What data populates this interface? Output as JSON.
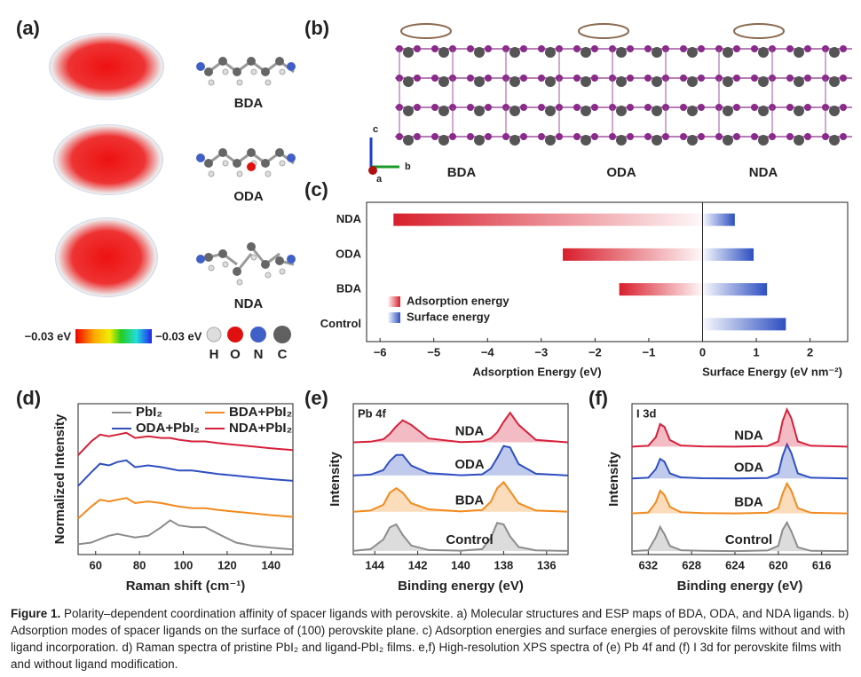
{
  "panels": {
    "a": {
      "label": "(a)",
      "molecules": [
        "BDA",
        "ODA",
        "NDA"
      ],
      "colorbar": [
        "−0.03 eV",
        "−0.03 eV"
      ],
      "atoms": [
        "H",
        "O",
        "N",
        "C"
      ]
    },
    "b": {
      "label": "(b)",
      "molecules": [
        "BDA",
        "ODA",
        "NDA"
      ],
      "axes": [
        "c",
        "b",
        "a"
      ]
    }
  },
  "chart_data": [
    {
      "type": "bar",
      "label": "(c)",
      "orientation": "horizontal",
      "categories": [
        "NDA",
        "ODA",
        "BDA",
        "Control"
      ],
      "series": [
        {
          "name": "Adsorption energy",
          "color": "#d81e2c",
          "values": [
            -5.75,
            -2.6,
            -1.55,
            null
          ]
        },
        {
          "name": "Surface energy",
          "color": "#2d4fc0",
          "values": [
            0.6,
            0.95,
            1.2,
            1.55
          ]
        }
      ],
      "xlim": [
        -6.25,
        2.7
      ],
      "xticks": [
        {
          "value": -6,
          "label": "−6"
        },
        {
          "value": -5,
          "label": "−5"
        },
        {
          "value": -4,
          "label": "−4"
        },
        {
          "value": -3,
          "label": "−3"
        },
        {
          "value": -2,
          "label": "−2"
        },
        {
          "value": -1,
          "label": "−1"
        },
        0,
        1,
        2
      ],
      "xlabel": [
        "Adsorption Energy (eV)",
        "Surface Energy (eV nm⁻²)"
      ]
    },
    {
      "type": "line",
      "label": "(d)",
      "xlabel": "Raman shift (cm⁻¹)",
      "ylabel": "Normalized Intensity",
      "x": [
        52,
        58,
        62,
        66,
        70,
        74,
        78,
        84,
        90,
        94,
        98,
        104,
        110,
        116,
        124,
        132,
        140,
        150
      ],
      "series": [
        {
          "name": "PbI₂",
          "color": "#8c8c8c",
          "values": [
            0.3,
            0.35,
            0.45,
            0.55,
            0.6,
            0.55,
            0.5,
            0.55,
            0.8,
            1.0,
            0.85,
            0.8,
            0.8,
            0.6,
            0.35,
            0.25,
            0.2,
            0.15
          ]
        },
        {
          "name": "BDA+PbI₂",
          "color": "#f28a1e",
          "values": [
            1.05,
            1.4,
            1.6,
            1.55,
            1.6,
            1.65,
            1.5,
            1.55,
            1.5,
            1.45,
            1.4,
            1.35,
            1.35,
            1.3,
            1.25,
            1.2,
            1.15,
            1.1
          ]
        },
        {
          "name": "ODA+PbI₂",
          "color": "#2f4fbf",
          "values": [
            2.0,
            2.4,
            2.65,
            2.6,
            2.7,
            2.75,
            2.55,
            2.6,
            2.55,
            2.5,
            2.45,
            2.45,
            2.4,
            2.35,
            2.3,
            2.25,
            2.2,
            2.15
          ]
        },
        {
          "name": "NDA+PbI₂",
          "color": "#d6203a",
          "values": [
            2.9,
            3.3,
            3.5,
            3.45,
            3.5,
            3.55,
            3.4,
            3.45,
            3.4,
            3.4,
            3.35,
            3.3,
            3.3,
            3.25,
            3.2,
            3.15,
            3.1,
            3.05
          ]
        }
      ],
      "xlim": [
        52,
        150
      ],
      "xticks": [
        60,
        80,
        100,
        120,
        140
      ],
      "ylim": [
        0,
        4.4
      ]
    },
    {
      "type": "area",
      "label": "(e)",
      "title": "Pb 4f",
      "xlabel": "Binding energy (eV)",
      "ylabel": "Intensity",
      "x": [
        145,
        144.2,
        143.6,
        143.3,
        143.0,
        142.7,
        142.3,
        141.5,
        140,
        139,
        138.6,
        138.3,
        138.0,
        137.7,
        137.3,
        136.5,
        135
      ],
      "series": [
        {
          "name": "Control",
          "color": "#8c8c8c",
          "values": [
            0.02,
            0.08,
            0.4,
            0.8,
            0.9,
            0.55,
            0.2,
            0.05,
            0.03,
            0.08,
            0.45,
            0.95,
            0.9,
            0.5,
            0.15,
            0.04,
            0.02
          ]
        },
        {
          "name": "BDA",
          "color": "#f28a1e",
          "values": [
            1.32,
            1.36,
            1.55,
            1.95,
            2.1,
            1.95,
            1.6,
            1.4,
            1.33,
            1.38,
            1.65,
            2.1,
            2.3,
            2.0,
            1.6,
            1.36,
            1.32
          ]
        },
        {
          "name": "ODA",
          "color": "#2f4fbf",
          "values": [
            2.52,
            2.55,
            2.7,
            3.0,
            3.2,
            3.2,
            2.85,
            2.6,
            2.53,
            2.56,
            2.75,
            3.1,
            3.5,
            3.45,
            2.9,
            2.58,
            2.52
          ]
        },
        {
          "name": "NDA",
          "color": "#d6203a",
          "values": [
            3.62,
            3.64,
            3.72,
            3.9,
            4.15,
            4.35,
            4.2,
            3.75,
            3.63,
            3.65,
            3.75,
            3.95,
            4.3,
            4.6,
            4.2,
            3.7,
            3.62
          ]
        }
      ],
      "xlim": [
        145,
        135
      ],
      "xticks": [
        144,
        142,
        140,
        138,
        136
      ],
      "ylim": [
        -0.1,
        4.9
      ]
    },
    {
      "type": "area",
      "label": "(f)",
      "title": "I 3d",
      "xlabel": "Binding energy (eV)",
      "ylabel": "Intensity",
      "x": [
        633.5,
        632,
        631.3,
        630.9,
        630.5,
        630,
        629,
        627,
        624,
        621,
        620,
        619.6,
        619.2,
        618.8,
        618.2,
        617,
        613.6
      ],
      "series": [
        {
          "name": "Control",
          "color": "#8c8c8c",
          "values": [
            0.02,
            0.05,
            0.5,
            0.85,
            0.6,
            0.2,
            0.05,
            0.03,
            0.02,
            0.04,
            0.2,
            0.75,
            1.0,
            0.7,
            0.15,
            0.03,
            0.02
          ]
        },
        {
          "name": "BDA",
          "color": "#f28a1e",
          "values": [
            1.32,
            1.35,
            1.7,
            2.1,
            1.95,
            1.55,
            1.36,
            1.33,
            1.32,
            1.34,
            1.5,
            2.0,
            2.35,
            2.1,
            1.5,
            1.34,
            1.32
          ]
        },
        {
          "name": "ODA",
          "color": "#2f4fbf",
          "values": [
            2.52,
            2.55,
            2.85,
            3.2,
            3.1,
            2.7,
            2.56,
            2.53,
            2.52,
            2.54,
            2.7,
            3.3,
            3.7,
            3.4,
            2.7,
            2.55,
            2.52
          ]
        },
        {
          "name": "NDA",
          "color": "#d6203a",
          "values": [
            3.62,
            3.65,
            3.95,
            4.4,
            4.3,
            3.85,
            3.66,
            3.63,
            3.62,
            3.64,
            3.8,
            4.5,
            4.9,
            4.6,
            3.8,
            3.65,
            3.62
          ]
        }
      ],
      "xlim": [
        633.5,
        613.6
      ],
      "xticks": [
        632,
        628,
        624,
        620,
        616
      ],
      "ylim": [
        -0.1,
        5.1
      ]
    }
  ],
  "caption": {
    "label": "Figure 1.",
    "text": "Polarity–dependent coordination affinity of spacer ligands with perovskite. a) Molecular structures and ESP maps of BDA, ODA, and NDA ligands. b) Adsorption modes of spacer ligands on the surface of (100) perovskite plane. c) Adsorption energies and surface energies of perovskite films without and with ligand incorporation. d) Raman spectra of pristine PbI₂ and ligand-PbI₂ films. e,f) High-resolution XPS spectra of (e) Pb 4f and (f) I 3d for perovskite films with and without ligand modification."
  }
}
